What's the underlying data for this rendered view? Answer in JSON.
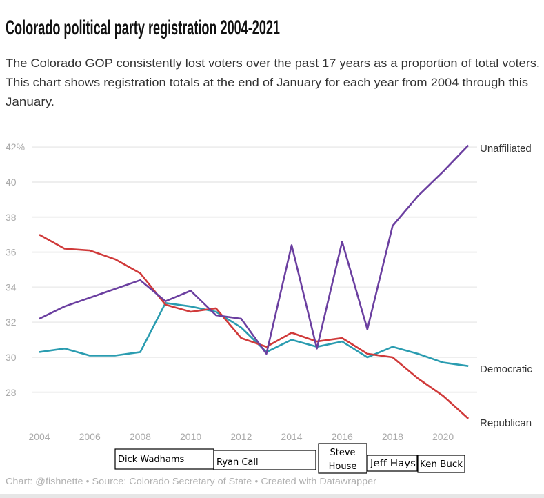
{
  "chart_data": {
    "type": "line",
    "title": "Colorado political party registration 2004-2021",
    "subtitle_lines": [
      "The Colorado GOP consistently lost voters over the past 17 years as a proportion of total voters.",
      "This chart shows registration totals at the end of January for each year from 2004 through this",
      "January."
    ],
    "x": [
      2004,
      2005,
      2006,
      2007,
      2008,
      2009,
      2010,
      2011,
      2012,
      2013,
      2014,
      2015,
      2016,
      2017,
      2018,
      2019,
      2020,
      2021
    ],
    "x_ticks": [
      "2004",
      "2006",
      "2008",
      "2010",
      "2012",
      "2014",
      "2016",
      "2018",
      "2020"
    ],
    "y_ticks": [
      "42%",
      "40",
      "38",
      "36",
      "34",
      "32",
      "30",
      "28"
    ],
    "ylim": [
      26,
      42
    ],
    "grid": true,
    "legend": "inline labels at line ends",
    "series": [
      {
        "name": "Unaffiliated",
        "color": "#6b3fa0",
        "values": [
          32.2,
          32.9,
          33.4,
          33.9,
          34.4,
          33.2,
          33.8,
          32.4,
          32.2,
          30.2,
          36.4,
          30.5,
          36.6,
          31.6,
          37.5,
          39.2,
          40.6,
          42.1
        ]
      },
      {
        "name": "Democratic",
        "color": "#2a9cb0",
        "values": [
          30.3,
          30.5,
          30.1,
          30.1,
          30.3,
          33.1,
          32.9,
          32.6,
          31.7,
          30.3,
          31.0,
          30.6,
          30.9,
          30.0,
          30.6,
          30.2,
          29.7,
          29.5
        ]
      },
      {
        "name": "Republican",
        "color": "#d03a3a",
        "values": [
          37.0,
          36.2,
          36.1,
          35.6,
          34.8,
          33.0,
          32.6,
          32.8,
          31.1,
          30.6,
          31.4,
          30.9,
          31.1,
          30.2,
          30.0,
          28.8,
          27.8,
          26.5
        ]
      }
    ],
    "annotations": [
      {
        "label": "Dick Wadhams"
      },
      {
        "label": "Ryan Call"
      },
      {
        "label": "Steve House"
      },
      {
        "label": "Jeff Hays"
      },
      {
        "label": "Ken Buck"
      }
    ],
    "footer": "Chart: @fishnette • Source: Colorado Secretary of State • Created with Datawrapper"
  }
}
